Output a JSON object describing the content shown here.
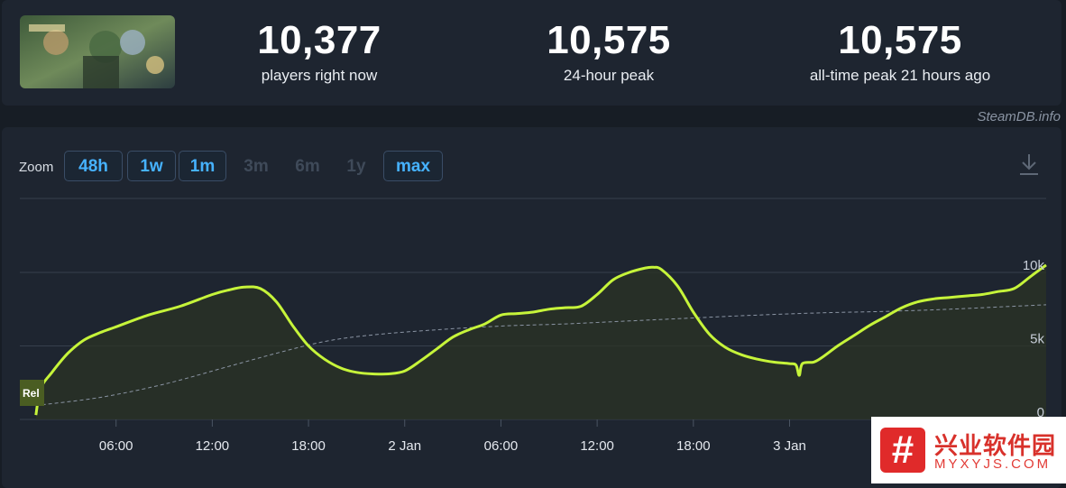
{
  "header": {
    "capsule_alt": "game-capsule-art",
    "stats": [
      {
        "value": "10,377",
        "label": "players right now"
      },
      {
        "value": "10,575",
        "label": "24-hour peak"
      },
      {
        "value": "10,575",
        "label": "all-time peak 21 hours ago"
      }
    ],
    "credit": "SteamDB.info"
  },
  "zoom": {
    "label": "Zoom",
    "buttons": [
      {
        "label": "48h",
        "enabled": true
      },
      {
        "label": "1w",
        "enabled": true
      },
      {
        "label": "1m",
        "enabled": true
      },
      {
        "label": "3m",
        "enabled": false
      },
      {
        "label": "6m",
        "enabled": false
      },
      {
        "label": "1y",
        "enabled": false
      },
      {
        "label": "max",
        "enabled": true
      }
    ],
    "download_icon": "download-icon"
  },
  "colors": {
    "line": "#c6f43a",
    "trend": "#8a94a3",
    "background": "#1e2530",
    "button_active": "#46b2ff"
  },
  "chart_data": {
    "type": "line",
    "xlabel": "",
    "ylabel": "",
    "x_ticks": [
      "06:00",
      "12:00",
      "18:00",
      "2 Jan",
      "06:00",
      "12:00",
      "18:00",
      "3 Jan"
    ],
    "y_ticks": [
      "0",
      "5k",
      "10k"
    ],
    "ylim": [
      0,
      10575
    ],
    "grid": true,
    "marker": "Rel",
    "series": [
      {
        "style": "solid",
        "points": [
          [
            1.0,
            300
          ],
          [
            1.3,
            2100
          ],
          [
            2.0,
            3200
          ],
          [
            3.0,
            4500
          ],
          [
            4.0,
            5400
          ],
          [
            5.0,
            5900
          ],
          [
            6.0,
            6300
          ],
          [
            8.0,
            7100
          ],
          [
            10.0,
            7700
          ],
          [
            12.0,
            8500
          ],
          [
            13.0,
            8800
          ],
          [
            14.0,
            9000
          ],
          [
            15.0,
            8900
          ],
          [
            16.0,
            8000
          ],
          [
            17.0,
            6400
          ],
          [
            18.0,
            5000
          ],
          [
            19.0,
            4100
          ],
          [
            20.0,
            3500
          ],
          [
            21.0,
            3200
          ],
          [
            22.0,
            3100
          ],
          [
            23.0,
            3100
          ],
          [
            24.0,
            3300
          ],
          [
            25.0,
            4000
          ],
          [
            26.0,
            4800
          ],
          [
            27.0,
            5600
          ],
          [
            28.0,
            6100
          ],
          [
            29.0,
            6500
          ],
          [
            30.0,
            7100
          ],
          [
            31.0,
            7200
          ],
          [
            32.0,
            7300
          ],
          [
            33.0,
            7500
          ],
          [
            34.0,
            7600
          ],
          [
            35.0,
            7700
          ],
          [
            36.0,
            8500
          ],
          [
            37.0,
            9500
          ],
          [
            38.0,
            10000
          ],
          [
            39.0,
            10300
          ],
          [
            39.5,
            10350
          ],
          [
            40.0,
            10200
          ],
          [
            41.0,
            9100
          ],
          [
            42.0,
            7300
          ],
          [
            43.0,
            5800
          ],
          [
            44.0,
            4900
          ],
          [
            45.0,
            4400
          ],
          [
            46.0,
            4100
          ],
          [
            47.0,
            3900
          ],
          [
            48.0,
            3800
          ],
          [
            48.4,
            3700
          ],
          [
            48.6,
            3000
          ],
          [
            48.8,
            3800
          ],
          [
            49.5,
            3900
          ],
          [
            50.0,
            4200
          ],
          [
            51.0,
            5000
          ],
          [
            52.0,
            5700
          ],
          [
            53.0,
            6400
          ],
          [
            54.0,
            7000
          ],
          [
            55.0,
            7600
          ],
          [
            56.0,
            8000
          ],
          [
            57.0,
            8200
          ],
          [
            58.0,
            8300
          ],
          [
            59.0,
            8400
          ],
          [
            60.0,
            8500
          ],
          [
            61.0,
            8700
          ],
          [
            62.0,
            8900
          ],
          [
            63.0,
            9700
          ],
          [
            64.0,
            10500
          ]
        ]
      },
      {
        "style": "dashed",
        "points": [
          [
            1.0,
            950
          ],
          [
            5.0,
            1500
          ],
          [
            9.0,
            2400
          ],
          [
            13.0,
            3600
          ],
          [
            16.0,
            4500
          ],
          [
            19.0,
            5300
          ],
          [
            22.0,
            5750
          ],
          [
            26.0,
            6100
          ],
          [
            30.0,
            6350
          ],
          [
            34.0,
            6500
          ],
          [
            38.0,
            6700
          ],
          [
            42.0,
            6900
          ],
          [
            46.0,
            7100
          ],
          [
            50.0,
            7250
          ],
          [
            54.0,
            7350
          ],
          [
            58.0,
            7500
          ],
          [
            62.0,
            7700
          ],
          [
            64.0,
            7800
          ]
        ]
      }
    ]
  },
  "watermark": {
    "cn": "兴业软件园",
    "en": "MYXYJS.COM",
    "logo": "#"
  }
}
